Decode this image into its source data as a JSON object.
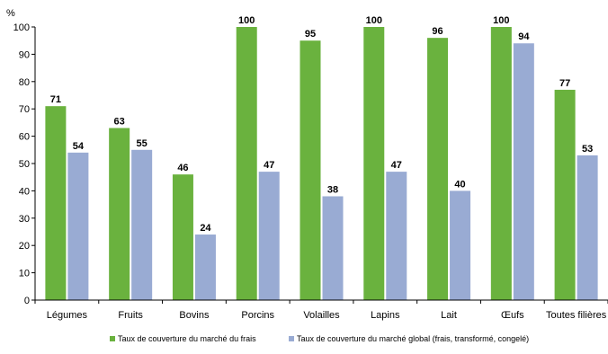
{
  "chart_data": {
    "type": "bar",
    "unit_label": "%",
    "categories": [
      "Légumes",
      "Fruits",
      "Bovins",
      "Porcins",
      "Volailles",
      "Lapins",
      "Lait",
      "Œufs",
      "Toutes filières"
    ],
    "series": [
      {
        "name": "Taux de couverture du marché du frais",
        "color": "#6ab23e",
        "values": [
          71,
          63,
          46,
          100,
          95,
          100,
          96,
          100,
          77
        ]
      },
      {
        "name": "Taux de couverture du marché global (frais, transformé, congelé)",
        "color": "#99abd3",
        "values": [
          54,
          55,
          24,
          47,
          38,
          47,
          40,
          94,
          53
        ]
      }
    ],
    "ylim": [
      0,
      100
    ],
    "yticks": [
      0,
      10,
      20,
      30,
      40,
      50,
      60,
      70,
      80,
      90,
      100
    ],
    "grid": false,
    "legend_position": "bottom"
  }
}
